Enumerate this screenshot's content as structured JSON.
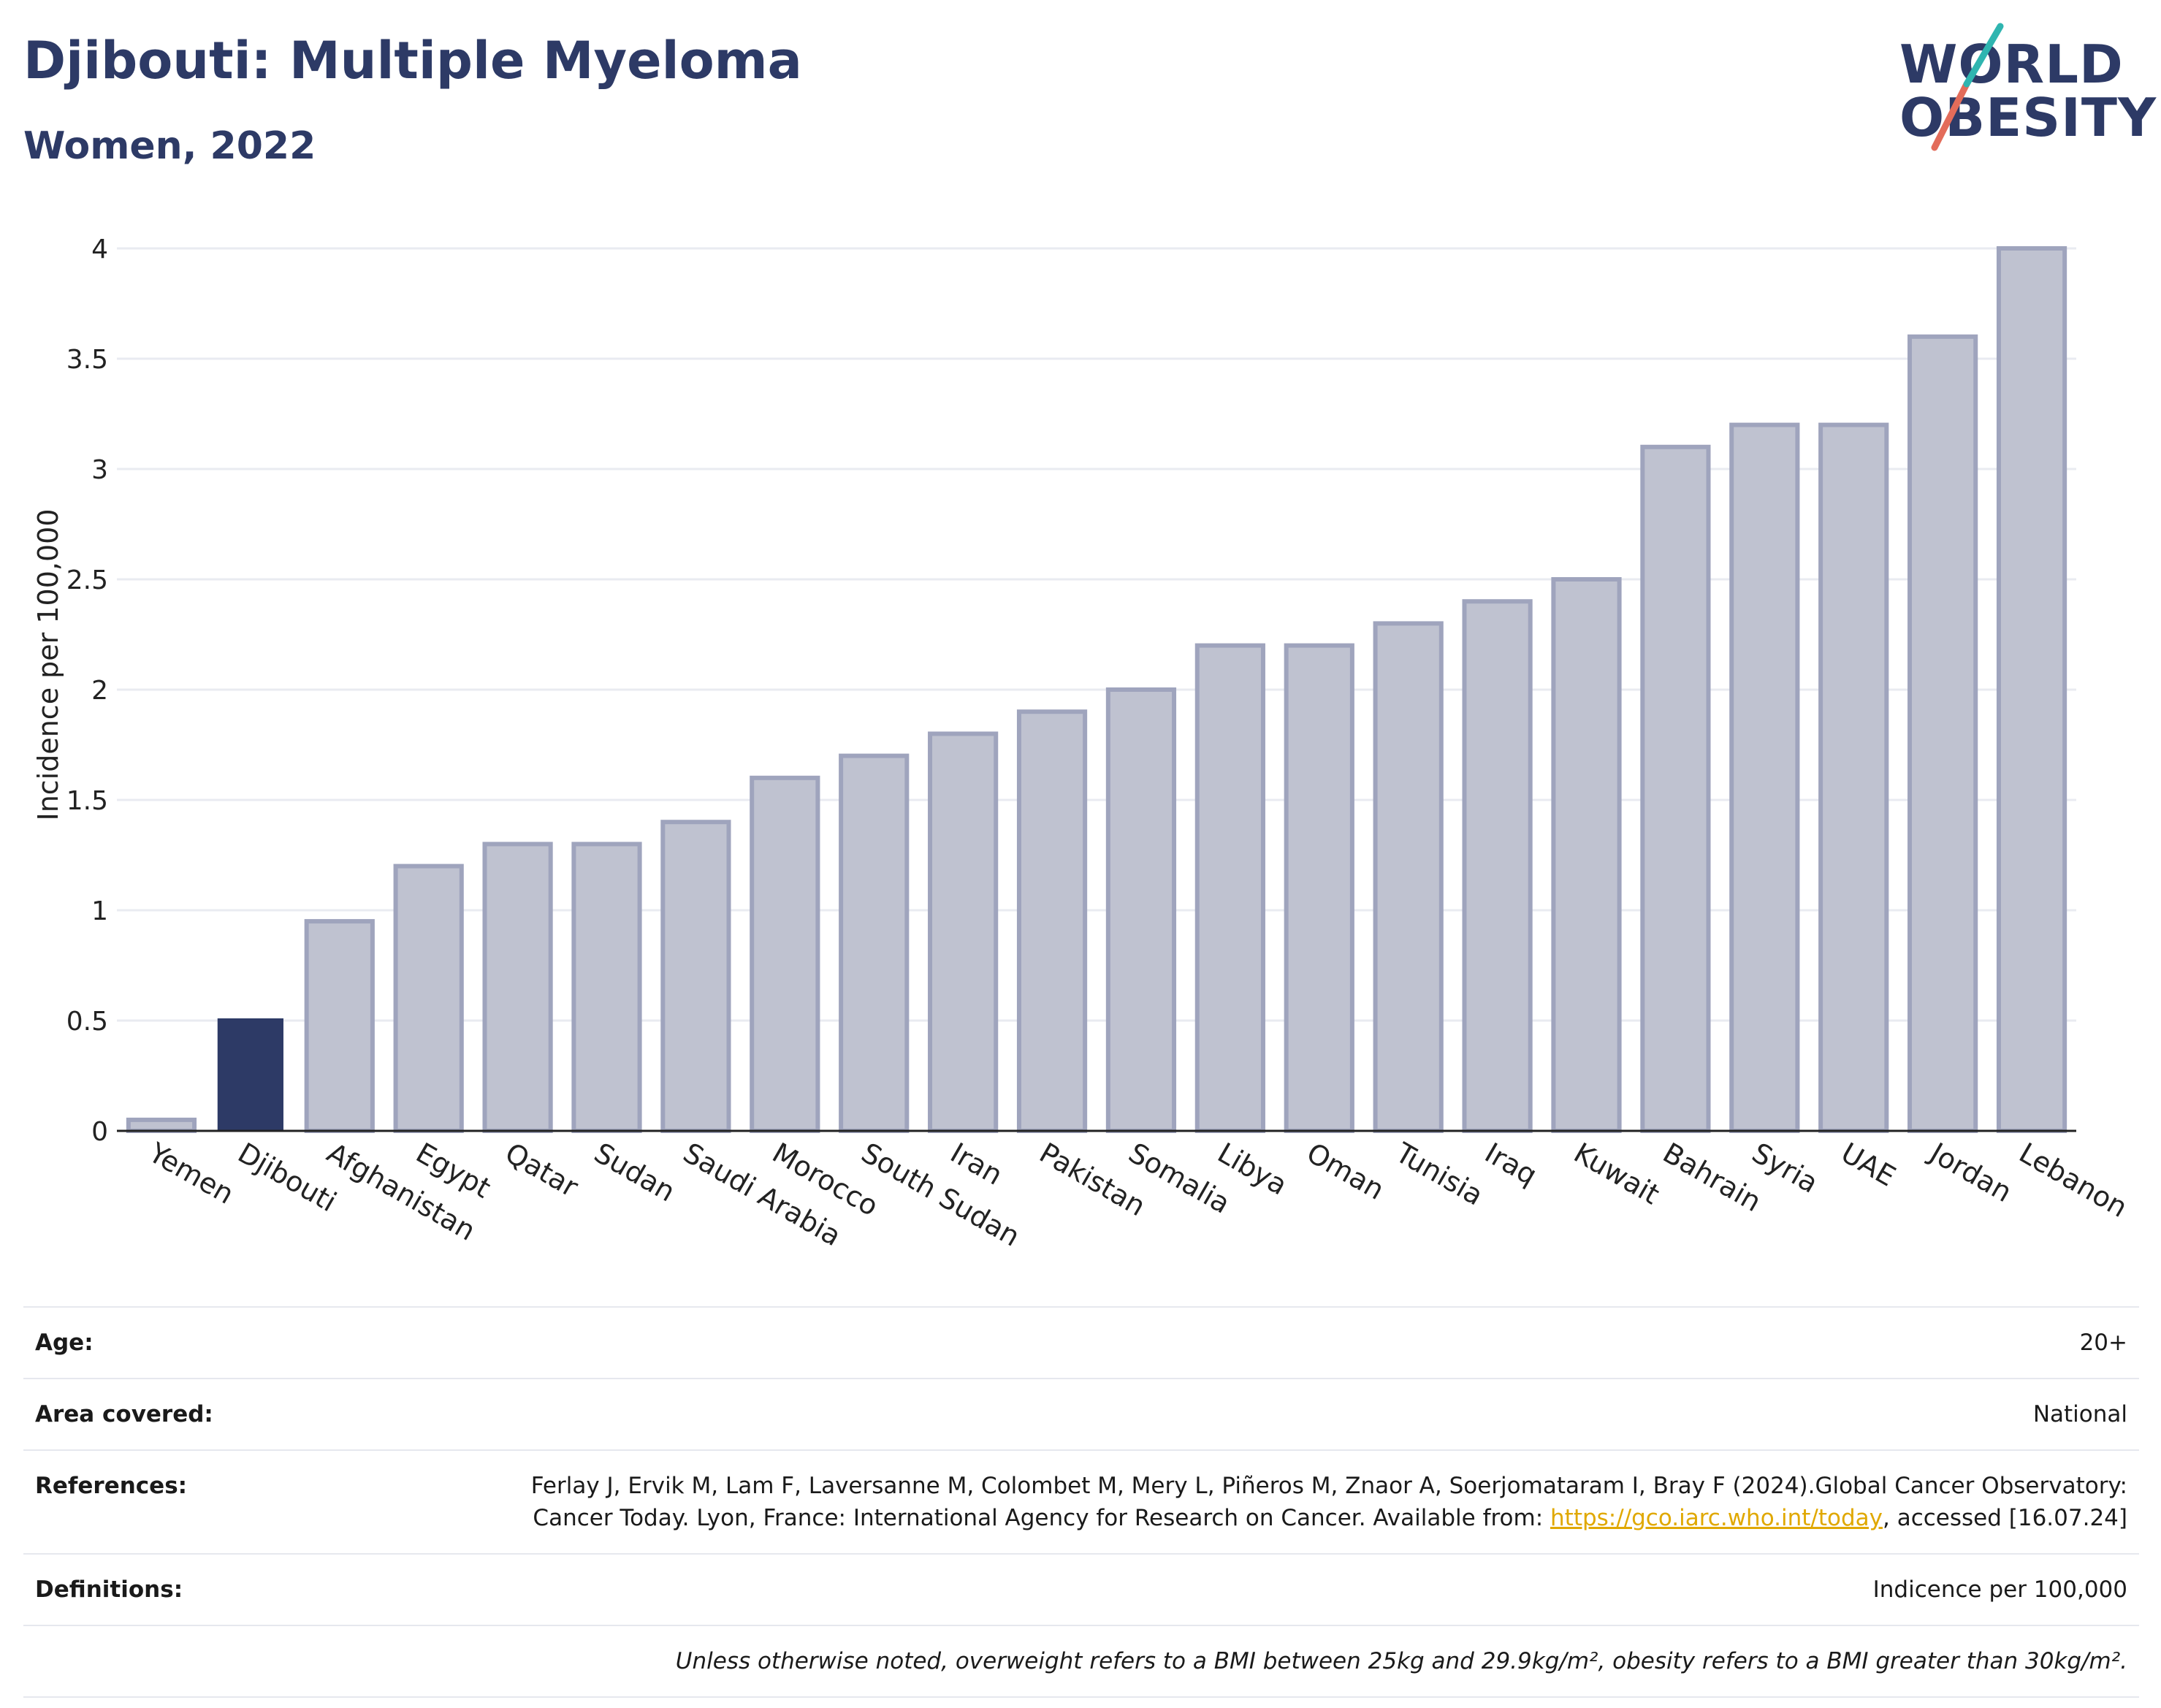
{
  "header": {
    "title": "Djibouti: Multiple Myeloma",
    "subtitle": "Women, 2022"
  },
  "logo": {
    "line1": "WORLD",
    "line2": "OBESITY"
  },
  "chart_data": {
    "type": "bar",
    "categories": [
      "Yemen",
      "Djibouti",
      "Afghanistan",
      "Egypt",
      "Qatar",
      "Sudan",
      "Saudi Arabia",
      "Morocco",
      "South Sudan",
      "Iran",
      "Pakistan",
      "Somalia",
      "Libya",
      "Oman",
      "Tunisia",
      "Iraq",
      "Kuwait",
      "Bahrain",
      "Syria",
      "UAE",
      "Jordan",
      "Lebanon"
    ],
    "values": [
      0.05,
      0.51,
      0.95,
      1.2,
      1.3,
      1.3,
      1.4,
      1.6,
      1.7,
      1.8,
      1.9,
      2.0,
      2.2,
      2.2,
      2.3,
      2.4,
      2.5,
      3.1,
      3.2,
      3.2,
      3.6,
      4.0
    ],
    "highlight": "Djibouti",
    "ylabel": "Incidence per 100,000",
    "xlabel": "",
    "ylim": [
      0,
      4
    ],
    "yticks": [
      0,
      0.5,
      1,
      1.5,
      2,
      2.5,
      3,
      3.5,
      4
    ],
    "ytick_labels": [
      "0",
      "0.5",
      "1",
      "1.5",
      "2",
      "2.5",
      "3",
      "3.5",
      "4"
    ],
    "grid": true,
    "colors": {
      "highlight": "#2d3a66",
      "other_fill": "#bfc2d0",
      "other_stroke": "#9fa4bd"
    }
  },
  "info": {
    "age_label": "Age:",
    "age_value": "20+",
    "area_label": "Area covered:",
    "area_value": "National",
    "ref_label": "References:",
    "ref_text_1": "Ferlay J, Ervik M, Lam F, Laversanne M, Colombet M, Mery L, Piñeros M, Znaor A, Soerjomataram I, Bray F (2024).Global Cancer Observatory: Cancer Today. Lyon, France: International Agency for Research on Cancer. Available from: ",
    "ref_link": "https://gco.iarc.who.int/today",
    "ref_text_2": ", accessed [16.07.24]",
    "def_label": "Definitions:",
    "def_value": "Indicence per 100,000",
    "note": "Unless otherwise noted, overweight refers to a BMI between 25kg and 29.9kg/m², obesity refers to a BMI greater than 30kg/m²."
  }
}
